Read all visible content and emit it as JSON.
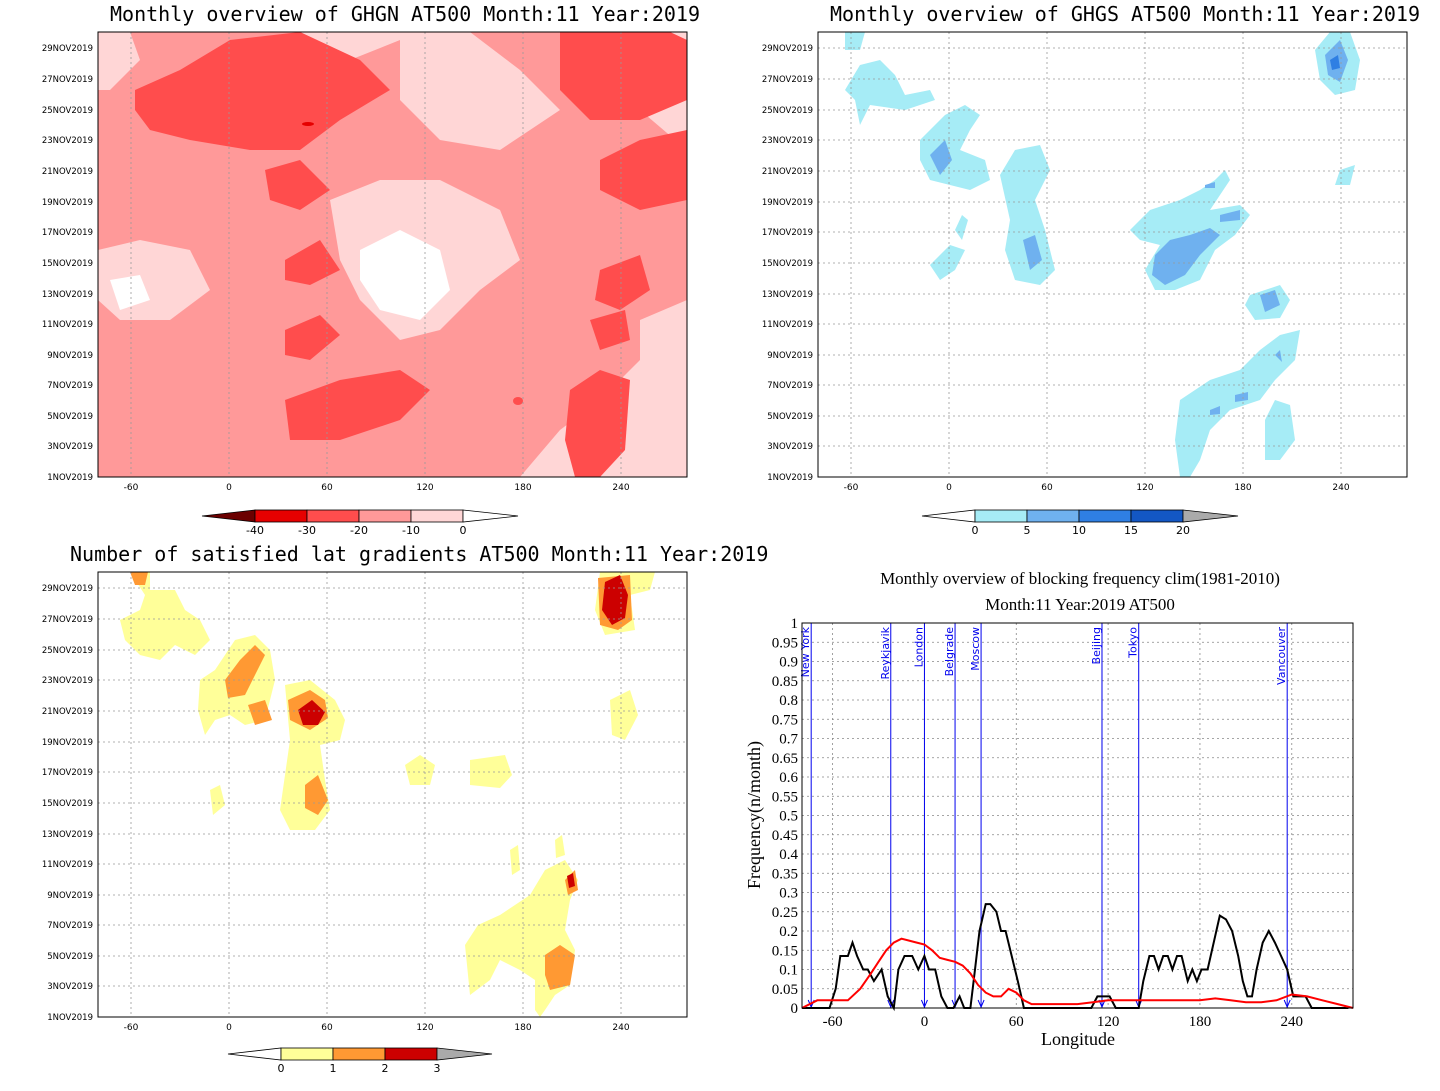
{
  "panels": {
    "ghgn": {
      "title": "Monthly overview of GHGN AT500 Month:11 Year:2019",
      "colorbar": {
        "ticks": [
          "-40",
          "-30",
          "-20",
          "-10",
          "0"
        ],
        "colors": [
          "#6b0000",
          "#e60000",
          "#ff4d4d",
          "#ff9999",
          "#ffd6d6",
          "#ffffff"
        ]
      }
    },
    "ghgs": {
      "title": "Monthly overview of GHGS AT500 Month:11 Year:2019",
      "colorbar": {
        "ticks": [
          "0",
          "5",
          "10",
          "15",
          "20"
        ],
        "colors": [
          "#ffffff",
          "#a6ecf6",
          "#6fb1ef",
          "#2f7fe3",
          "#1357c4",
          "#aaaaaa"
        ]
      }
    },
    "gradients": {
      "title": "Number of satisfied lat gradients AT500 Month:11 Year:2019",
      "colorbar": {
        "ticks": [
          "0",
          "1",
          "2",
          "3"
        ],
        "colors": [
          "#ffffff",
          "#ffff99",
          "#ff9933",
          "#cc0000",
          "#aaaaaa"
        ]
      }
    },
    "freq": {
      "title_line1": "Monthly overview of blocking frequency clim(1981-2010)",
      "title_line2": "Month:11 Year:2019  AT500"
    }
  },
  "map_axes": {
    "x_ticks": [
      "-60",
      "0",
      "60",
      "120",
      "180",
      "240"
    ],
    "y_ticks": [
      "1NOV2019",
      "3NOV2019",
      "5NOV2019",
      "7NOV2019",
      "9NOV2019",
      "11NOV2019",
      "13NOV2019",
      "15NOV2019",
      "17NOV2019",
      "19NOV2019",
      "21NOV2019",
      "23NOV2019",
      "25NOV2019",
      "27NOV2019",
      "29NOV2019"
    ]
  },
  "chart_data": [
    {
      "type": "heatmap",
      "title": "Monthly overview of GHGN AT500 Month:11 Year:2019",
      "xlim": [
        -75,
        285
      ],
      "x_ticks": [
        -60,
        0,
        60,
        120,
        180,
        240
      ],
      "y_ticks": [
        "1NOV2019",
        "3NOV2019",
        "5NOV2019",
        "7NOV2019",
        "9NOV2019",
        "11NOV2019",
        "13NOV2019",
        "15NOV2019",
        "17NOV2019",
        "19NOV2019",
        "21NOV2019",
        "23NOV2019",
        "25NOV2019",
        "27NOV2019",
        "29NOV2019"
      ],
      "color_levels": [
        -40,
        -30,
        -20,
        -10,
        0
      ]
    },
    {
      "type": "heatmap",
      "title": "Monthly overview of GHGS AT500 Month:11 Year:2019",
      "xlim": [
        -75,
        285
      ],
      "x_ticks": [
        -60,
        0,
        60,
        120,
        180,
        240
      ],
      "y_ticks": [
        "1NOV2019",
        "3NOV2019",
        "5NOV2019",
        "7NOV2019",
        "9NOV2019",
        "11NOV2019",
        "13NOV2019",
        "15NOV2019",
        "17NOV2019",
        "19NOV2019",
        "21NOV2019",
        "23NOV2019",
        "25NOV2019",
        "27NOV2019",
        "29NOV2019"
      ],
      "color_levels": [
        0,
        5,
        10,
        15,
        20
      ]
    },
    {
      "type": "heatmap",
      "title": "Number of satisfied lat gradients AT500 Month:11 Year:2019",
      "xlim": [
        -75,
        285
      ],
      "x_ticks": [
        -60,
        0,
        60,
        120,
        180,
        240
      ],
      "y_ticks": [
        "1NOV2019",
        "3NOV2019",
        "5NOV2019",
        "7NOV2019",
        "9NOV2019",
        "11NOV2019",
        "13NOV2019",
        "15NOV2019",
        "17NOV2019",
        "19NOV2019",
        "21NOV2019",
        "23NOV2019",
        "25NOV2019",
        "27NOV2019",
        "29NOV2019"
      ],
      "color_levels": [
        0,
        1,
        2,
        3
      ]
    },
    {
      "type": "line",
      "title": "Monthly overview of blocking frequency clim(1981-2010) Month:11 Year:2019  AT500",
      "xlabel": "Longitude",
      "ylabel": "Frequency(n/month)",
      "xlim": [
        -80,
        280
      ],
      "ylim": [
        0,
        1
      ],
      "x_ticks": [
        -60,
        0,
        60,
        120,
        180,
        240
      ],
      "y_ticks": [
        0,
        0.05,
        0.1,
        0.15,
        0.2,
        0.25,
        0.3,
        0.35,
        0.4,
        0.45,
        0.5,
        0.55,
        0.6,
        0.65,
        0.7,
        0.75,
        0.8,
        0.85,
        0.9,
        0.95,
        1
      ],
      "grid": true,
      "cities": [
        {
          "name": "New York",
          "lon": -74
        },
        {
          "name": "Reykjavik",
          "lon": -22
        },
        {
          "name": "London",
          "lon": 0
        },
        {
          "name": "Belgrade",
          "lon": 20
        },
        {
          "name": "Moscow",
          "lon": 37
        },
        {
          "name": "Beijing",
          "lon": 116
        },
        {
          "name": "Tokyo",
          "lon": 140
        },
        {
          "name": "Vancouver",
          "lon": 237
        }
      ],
      "series": [
        {
          "color": "#000000",
          "x": [
            -80,
            -70,
            -62,
            -58,
            -55,
            -50,
            -47,
            -44,
            -40,
            -37,
            -33,
            -28,
            -24,
            -20,
            -17,
            -13,
            -8,
            -4,
            0,
            3,
            7,
            11,
            15,
            19,
            23,
            26,
            30,
            33,
            36,
            40,
            43,
            47,
            50,
            53,
            57,
            61,
            65,
            69,
            73,
            77,
            81,
            85,
            89,
            93,
            97,
            101,
            105,
            109,
            113,
            117,
            121,
            125,
            129,
            133,
            137,
            140,
            143,
            147,
            150,
            153,
            156,
            159,
            162,
            165,
            168,
            172,
            175,
            178,
            181,
            185,
            189,
            193,
            197,
            201,
            205,
            208,
            211,
            214,
            217,
            221,
            225,
            229,
            233,
            237,
            241,
            245,
            249,
            253,
            257,
            261,
            265,
            269,
            273,
            277
          ],
          "y": [
            0.0,
            0.0,
            0.0,
            0.05,
            0.135,
            0.135,
            0.17,
            0.135,
            0.1,
            0.1,
            0.07,
            0.1,
            0.03,
            0.0,
            0.1,
            0.135,
            0.135,
            0.1,
            0.135,
            0.1,
            0.1,
            0.03,
            0.0,
            0.0,
            0.03,
            0.0,
            0.0,
            0.1,
            0.2,
            0.27,
            0.27,
            0.25,
            0.2,
            0.2,
            0.135,
            0.07,
            0.0,
            0.0,
            0.0,
            0.0,
            0.0,
            0.0,
            0.0,
            0.0,
            0.0,
            0.0,
            0.0,
            0.0,
            0.03,
            0.03,
            0.03,
            0.0,
            0.0,
            0.0,
            0.0,
            0.0,
            0.07,
            0.135,
            0.135,
            0.1,
            0.135,
            0.135,
            0.1,
            0.135,
            0.135,
            0.07,
            0.1,
            0.07,
            0.1,
            0.1,
            0.17,
            0.24,
            0.23,
            0.2,
            0.135,
            0.07,
            0.03,
            0.03,
            0.1,
            0.17,
            0.2,
            0.17,
            0.135,
            0.1,
            0.03,
            0.03,
            0.03,
            0.0,
            0.0,
            0.0,
            0.0,
            0.0,
            0.0,
            0.0
          ]
        },
        {
          "color": "#ff0000",
          "x": [
            -80,
            -70,
            -60,
            -50,
            -42,
            -35,
            -30,
            -25,
            -20,
            -15,
            -10,
            -5,
            0,
            5,
            10,
            15,
            20,
            25,
            30,
            35,
            40,
            45,
            50,
            55,
            60,
            65,
            70,
            80,
            90,
            100,
            110,
            120,
            130,
            140,
            150,
            160,
            170,
            180,
            190,
            200,
            210,
            220,
            230,
            240,
            250,
            260,
            270,
            280
          ],
          "y": [
            0.0,
            0.02,
            0.02,
            0.02,
            0.05,
            0.09,
            0.12,
            0.15,
            0.17,
            0.18,
            0.175,
            0.17,
            0.165,
            0.15,
            0.13,
            0.125,
            0.12,
            0.11,
            0.09,
            0.06,
            0.04,
            0.03,
            0.03,
            0.05,
            0.04,
            0.02,
            0.01,
            0.01,
            0.01,
            0.01,
            0.015,
            0.02,
            0.02,
            0.02,
            0.02,
            0.02,
            0.02,
            0.02,
            0.025,
            0.02,
            0.015,
            0.015,
            0.02,
            0.035,
            0.03,
            0.02,
            0.01,
            0.0
          ]
        }
      ]
    }
  ]
}
